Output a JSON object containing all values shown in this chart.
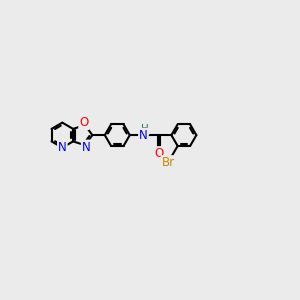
{
  "bg_color": "#ebebeb",
  "bond_color": "#000000",
  "bond_width": 1.5,
  "atom_colors": {
    "N": "#0000ff",
    "O": "#ff0000",
    "Br": "#cc8800",
    "H": "#336666"
  },
  "figsize": [
    3.0,
    3.0
  ],
  "dpi": 100,
  "xlim": [
    0.0,
    10.0
  ],
  "ylim": [
    2.5,
    7.5
  ]
}
